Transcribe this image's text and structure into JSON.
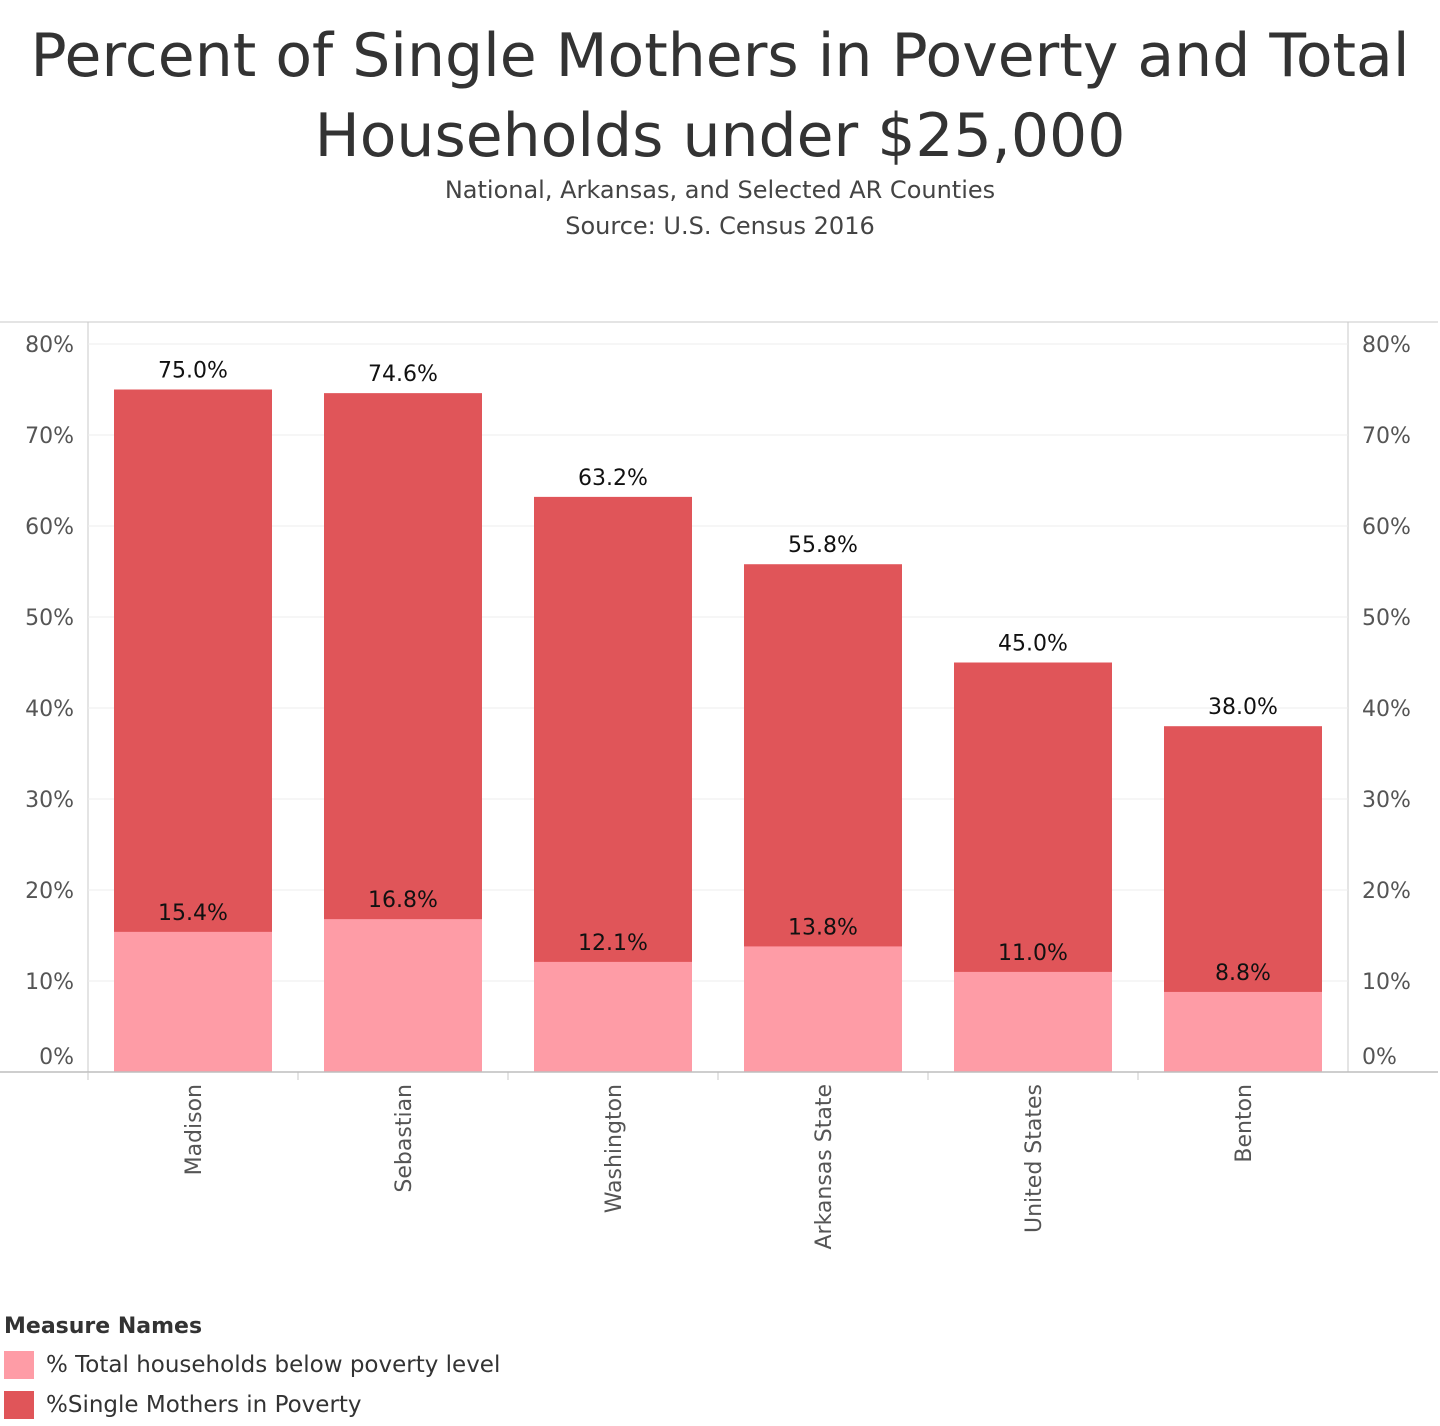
{
  "header": {
    "title_line1": "Percent of Single Mothers in Poverty and Total",
    "title_line2": "Households under $25,000",
    "subtitle_line1": "National, Arkansas, and Selected AR Counties",
    "subtitle_line2": "Source: U.S. Census 2016"
  },
  "colors": {
    "total_households": "#fe9ca6",
    "single_mothers": "#e05559",
    "grid": "#ececec",
    "axis": "#c8c8c8"
  },
  "legend": {
    "title": "Measure Names",
    "items": [
      {
        "label": "% Total households below poverty level",
        "color": "#fe9ca6"
      },
      {
        "label": "%Single Mothers in Poverty",
        "color": "#e05559"
      }
    ]
  },
  "chart_data": {
    "type": "bar",
    "categories": [
      "Madison",
      "Sebastian",
      "Washington",
      "Arkansas State",
      "United States",
      "Benton"
    ],
    "series": [
      {
        "name": "% Total households below poverty level",
        "values": [
          15.4,
          16.8,
          12.1,
          13.8,
          11.0,
          8.8
        ],
        "labels": [
          "15.4%",
          "16.8%",
          "12.1%",
          "13.8%",
          "11.0%",
          "8.8%"
        ]
      },
      {
        "name": "%Single Mothers in Poverty",
        "values": [
          75.0,
          74.6,
          63.2,
          55.8,
          45.0,
          38.0
        ],
        "labels": [
          "75.0%",
          "74.6%",
          "63.2%",
          "55.8%",
          "45.0%",
          "38.0%"
        ]
      }
    ],
    "yticks": [
      "0%",
      "10%",
      "20%",
      "30%",
      "40%",
      "50%",
      "60%",
      "70%",
      "80%"
    ],
    "ylim": [
      0,
      80
    ],
    "grid": true,
    "dual_axis": true,
    "legend_position": "bottom-left"
  }
}
